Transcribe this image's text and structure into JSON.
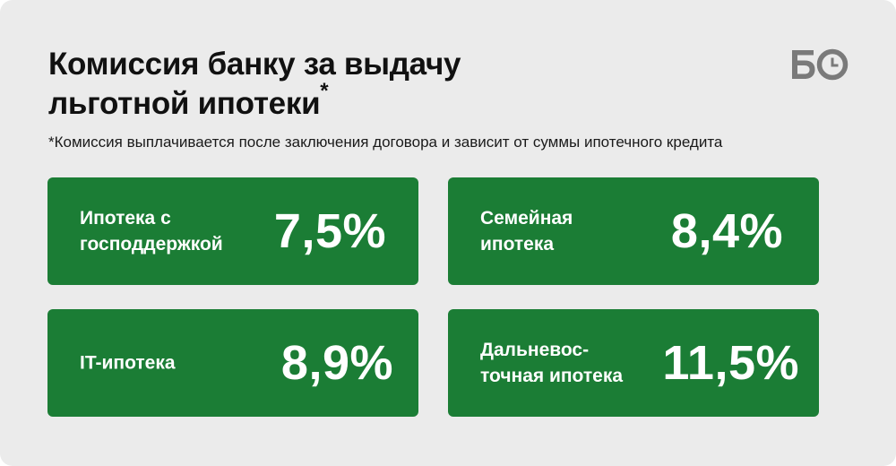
{
  "header": {
    "title_line1": "Комиссия банку за выдачу",
    "title_line2": "льготной ипотеки",
    "title_mark": "*",
    "note": "*Комиссия выплачивается после заключения договора и зависит от суммы ипотечного кредита"
  },
  "logo": {
    "text": "БО",
    "icon": "clock-icon",
    "color": "#7a7a7a"
  },
  "colors": {
    "background": "#ebebeb",
    "card": "#1b7d35",
    "card_text": "#ffffff",
    "title": "#111111"
  },
  "cards": [
    {
      "label_lines": [
        "Ипотека с",
        "господдержкой"
      ],
      "value": "7,5%"
    },
    {
      "label_lines": [
        "Семейная",
        "ипотека"
      ],
      "value": "8,4%"
    },
    {
      "label_lines": [
        "IT-ипотека"
      ],
      "value": "8,9%"
    },
    {
      "label_lines": [
        "Дальневос-",
        "точная ипотека"
      ],
      "value": "11,5%"
    }
  ]
}
